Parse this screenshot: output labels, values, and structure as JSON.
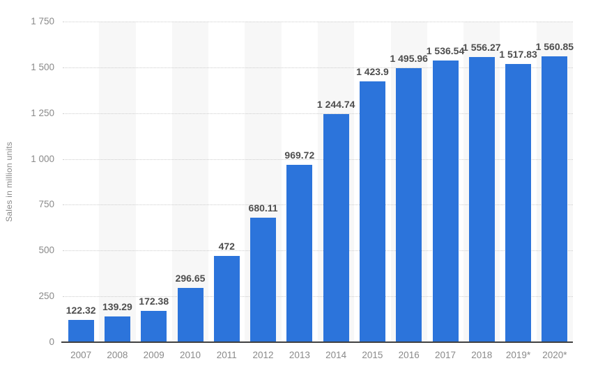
{
  "chart_data": {
    "type": "bar",
    "ylabel": "Sales in million units",
    "categories": [
      "2007",
      "2008",
      "2009",
      "2010",
      "2011",
      "2012",
      "2013",
      "2014",
      "2015",
      "2016",
      "2017",
      "2018",
      "2019*",
      "2020*"
    ],
    "values": [
      122.32,
      139.29,
      172.38,
      296.65,
      472,
      680.11,
      969.72,
      1244.74,
      1423.9,
      1495.96,
      1536.54,
      1556.27,
      1517.83,
      1560.85
    ],
    "value_labels": [
      "122.32",
      "139.29",
      "172.38",
      "296.65",
      "472",
      "680.11",
      "969.72",
      "1 244.74",
      "1 423.9",
      "1 495.96",
      "1 536.54",
      "1 556.27",
      "1 517.83",
      "1 560.85"
    ],
    "ylim": [
      0,
      1750
    ],
    "ytick_values": [
      0,
      250,
      500,
      750,
      1000,
      1250,
      1500,
      1750
    ],
    "ytick_labels": [
      "0",
      "250",
      "500",
      "750",
      "1 000",
      "1 250",
      "1 500",
      "1 750"
    ],
    "grid": "horizontal-dotted",
    "legend": "none",
    "colors": {
      "bar": "#2c74db",
      "band": "#f7f7f7",
      "gridline": "#cccccc",
      "axis_line": "#404040",
      "tick_label": "#8a8a8a",
      "value_label": "#4d4d4d"
    }
  }
}
